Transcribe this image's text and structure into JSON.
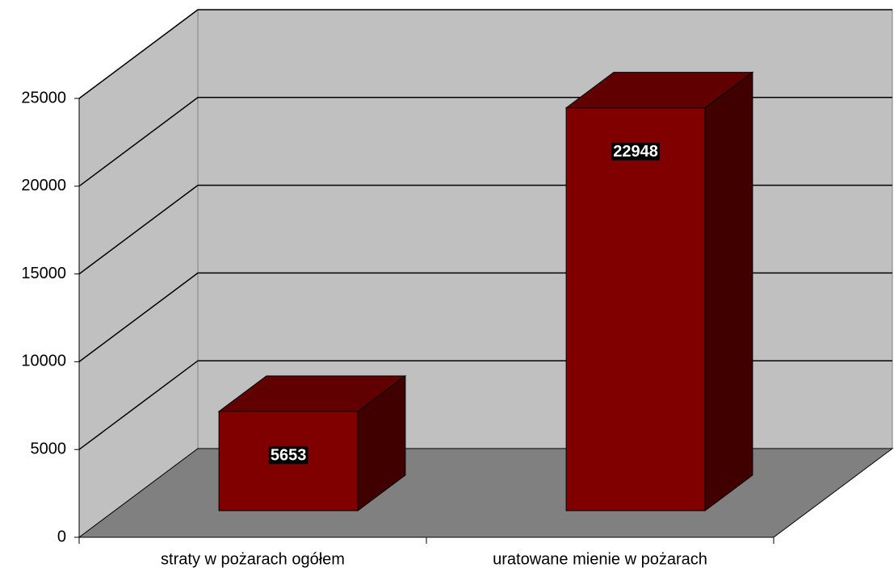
{
  "chart_data": {
    "type": "bar3d",
    "categories": [
      "straty w pożarach ogółem",
      "uratowane mienie w pożarach"
    ],
    "values": [
      5653,
      22948
    ],
    "color": "#800000",
    "ylim": [
      0,
      25000
    ],
    "yticks": [
      0,
      5000,
      10000,
      15000,
      20000,
      25000
    ],
    "grid": true
  }
}
